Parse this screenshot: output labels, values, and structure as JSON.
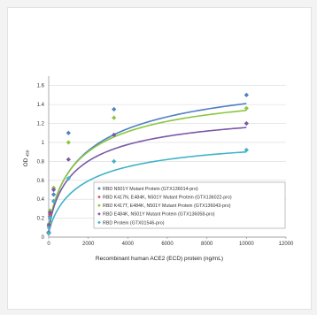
{
  "chart_data": {
    "type": "scatter",
    "title": "",
    "xlabel": "Recombinant human ACE2 (ECD) protein (ng/mL)",
    "ylabel": "OD",
    "ylabel_sub": "450",
    "xlim": [
      0,
      12000
    ],
    "ylim": [
      0,
      1.7
    ],
    "xticks": [
      "0",
      "2000",
      "4000",
      "6000",
      "8000",
      "10000",
      "12000"
    ],
    "yticks": [
      "0",
      "0.2",
      "0.4",
      "0.6",
      "0.8",
      "1",
      "1.2",
      "1.4",
      "1.6"
    ],
    "grid": "horizontal",
    "legend_position": "bottom-right",
    "series": [
      {
        "name": "RBD N501Y Mutant Protein (GTX136014-pro)",
        "color": "#4f7fc4",
        "x": [
          0,
          16,
          64,
          250,
          1000,
          3300,
          10000
        ],
        "y": [
          0.04,
          0.12,
          0.22,
          0.45,
          1.1,
          1.35,
          1.5
        ],
        "fit": {
          "top": 1.85,
          "ec50": 2200,
          "hill": 0.75
        }
      },
      {
        "name": "RBD K417N, E484K, N501Y Mutant Protein (GTX136022-pro)",
        "color": "#d9534f",
        "x": [
          0,
          16,
          64,
          250
        ],
        "y": [
          0.05,
          0.12,
          0.24,
          0.38
        ],
        "fit": null
      },
      {
        "name": "RBD K417T, E484K, N501Y Mutant Protein (GTX136043-pro)",
        "color": "#8cc63f",
        "x": [
          0,
          16,
          64,
          250,
          1000,
          3300,
          10000
        ],
        "y": [
          0.05,
          0.14,
          0.28,
          0.52,
          1.0,
          1.26,
          1.36
        ],
        "fit": {
          "top": 1.65,
          "ec50": 1700,
          "hill": 0.8
        }
      },
      {
        "name": "RBD E484K, N501Y Mutant Protein (GTX136058-pro)",
        "color": "#7b58a6",
        "x": [
          0,
          16,
          64,
          250,
          1000,
          3300,
          10000
        ],
        "y": [
          0.05,
          0.13,
          0.26,
          0.5,
          0.82,
          1.08,
          1.2
        ],
        "fit": {
          "top": 1.4,
          "ec50": 1500,
          "hill": 0.8
        }
      },
      {
        "name": "RBD Protein (GTX01546-pro)",
        "color": "#3fb3c8",
        "x": [
          0,
          16,
          64,
          250,
          1000,
          3300,
          10000
        ],
        "y": [
          0.04,
          0.1,
          0.2,
          0.38,
          0.62,
          0.8,
          0.92
        ],
        "fit": {
          "top": 1.1,
          "ec50": 1800,
          "hill": 0.85
        }
      }
    ]
  }
}
